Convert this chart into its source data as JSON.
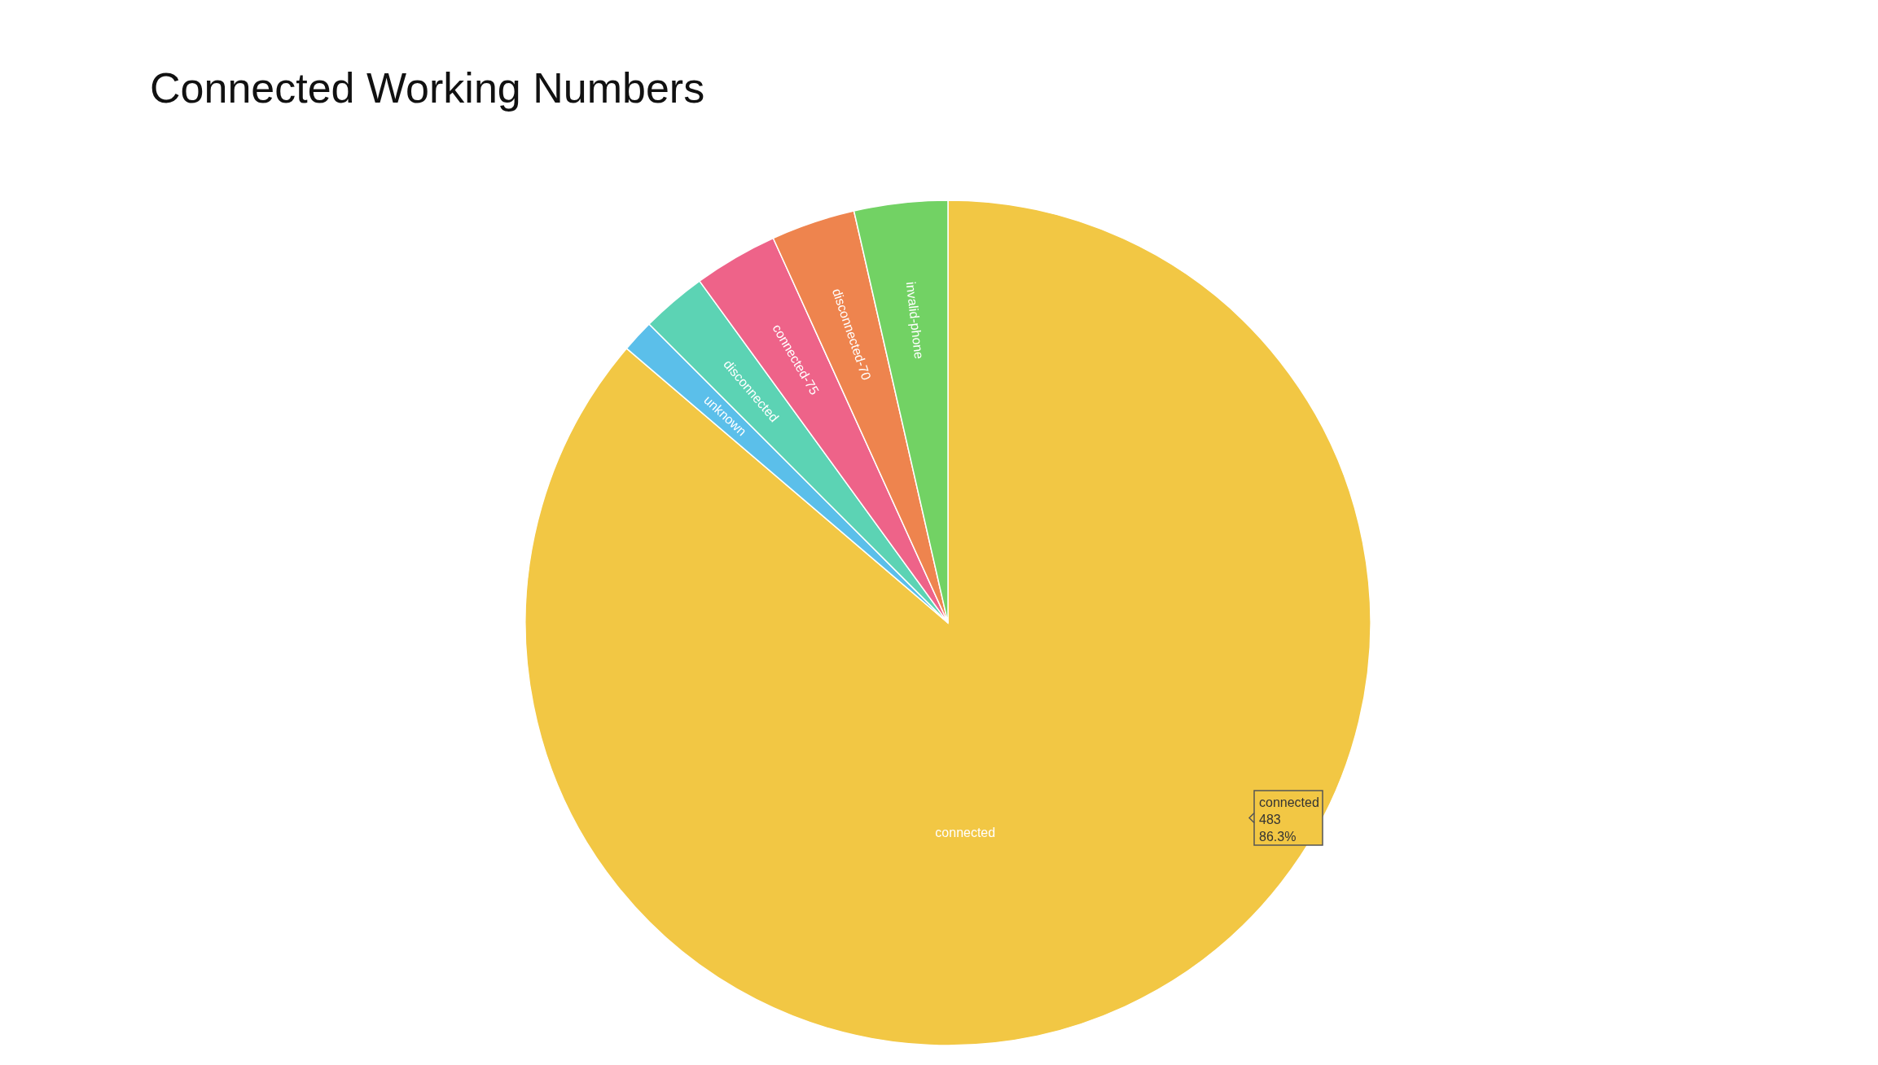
{
  "chart_data": {
    "type": "pie",
    "title": "Connected Working Numbers",
    "categories": [
      "connected",
      "unknown",
      "disconnected",
      "connected-75",
      "disconnected-70",
      "invalid-phone"
    ],
    "values": [
      483,
      7,
      14,
      18,
      18,
      20
    ],
    "colors": [
      "#f2c744",
      "#5bbfea",
      "#5cd3b4",
      "#ee6389",
      "#ee844e",
      "#72d264"
    ],
    "value_labels": [
      "483\n86.3%",
      null,
      null,
      null,
      null,
      null
    ]
  }
}
